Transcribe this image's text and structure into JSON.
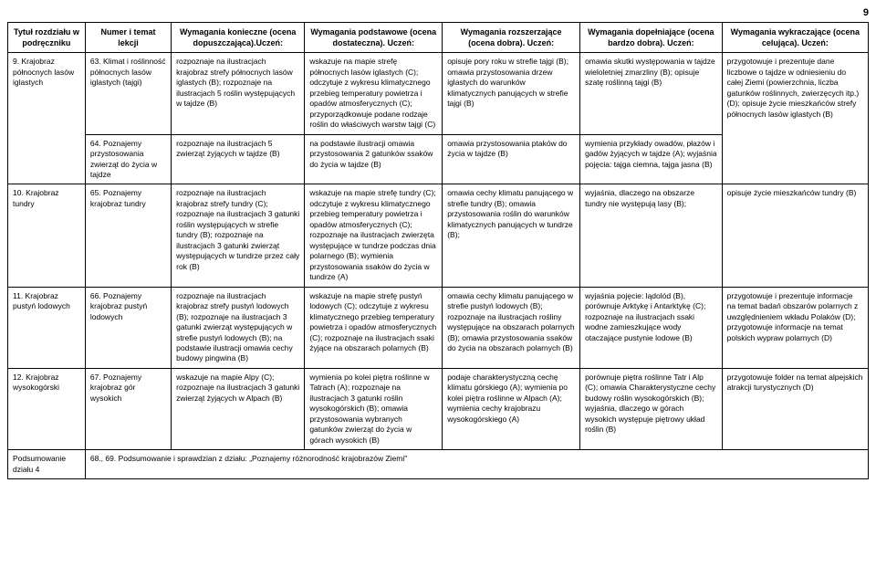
{
  "pageNumber": "9",
  "headers": [
    "Tytuł rozdziału w podręczniku",
    "Numer i temat lekcji",
    "Wymagania konieczne (ocena dopuszczająca).Uczeń:",
    "Wymagania podstawowe (ocena dostateczna). Uczeń:",
    "Wymagania rozszerzające (ocena dobra). Uczeń:",
    "Wymagania dopełniające (ocena bardzo dobra). Uczeń:",
    "Wymagania wykraczające (ocena celująca). Uczeń:"
  ],
  "rows": [
    {
      "c1": "9. Krajobraz północnych lasów iglastych",
      "c2": "63. Klimat i roślinność północnych lasów iglastych (tajgi)",
      "c3": "rozpoznaje na ilustracjach krajobraz strefy północnych lasów iglastych (B); rozpoznaje na ilustracjach 5 roślin występujących w tajdze (B)",
      "c4": "wskazuje na mapie strefę północnych lasów iglastych (C); odczytuje z wykresu klimatycznego przebieg temperatury powietrza i opadów atmosferycznych (C); przyporządkowuje podane rodzaje roślin do właściwych warstw tajgi (C)",
      "c5": "opisuje pory roku w strefie tajgi (B); omawia przystosowania drzew iglastych do warunków klimatycznych panujących w strefie tajgi (B)",
      "c6": "omawia skutki występowania w tajdze wieloletniej zmarzliny (B); opisuje szatę roślinną tajgi (B)",
      "c7": "przygotowuje i prezentuje dane liczbowe o tajdze w odniesieniu do całej Ziemi (powierzchnia, liczba gatunków roślinnych, zwierzęcych itp.) (D); opisuje życie mieszkańców strefy północnych lasów iglastych (B)"
    },
    {
      "c1": "",
      "c2": "64. Poznajemy przystosowania zwierząt do życia w tajdze",
      "c3": "rozpoznaje na ilustracjach 5 zwierząt żyjących w tajdze (B)",
      "c4": "na podstawie ilustracji omawia przystosowania 2 gatunków ssaków do życia w tajdze (B)",
      "c5": "omawia przystosowania ptaków do życia w tajdze (B)",
      "c6": "wymienia przykłady owadów, płazów i gadów żyjących w tajdze (A); wyjaśnia pojęcia: tajga ciemna, tajga jasna (B)",
      "c7": ""
    },
    {
      "c1": "10. Krajobraz tundry",
      "c2": "65. Poznajemy krajobraz tundry",
      "c3": "rozpoznaje na ilustracjach krajobraz strefy tundry (C); rozpoznaje na ilustracjach 3 gatunki roślin występujących w strefie tundry (B); rozpoznaje na ilustracjach 3 gatunki zwierząt występujących w tundrze przez cały rok (B)",
      "c4": "wskazuje na mapie strefę tundry (C); odczytuje z wykresu klimatycznego przebieg temperatury powietrza i opadów atmosferycznych (C); rozpoznaje na ilustracjach zwierzęta występujące w tundrze podczas dnia polarnego (B); wymienia przystosowania ssaków do życia w tundrze (A)",
      "c5": "omawia cechy klimatu panującego w strefie tundry (B); omawia przystosowania roślin do warunków klimatycznych panujących w tundrze (B);",
      "c6": "wyjaśnia, dlaczego na obszarze tundry nie występują lasy (B);",
      "c7": "opisuje życie mieszkańców tundry (B)"
    },
    {
      "c1": "11. Krajobraz pustyń lodowych",
      "c2": "66. Poznajemy krajobraz pustyń lodowych",
      "c3": "rozpoznaje na ilustracjach krajobraz strefy pustyń lodowych (B); rozpoznaje na ilustracjach 3 gatunki zwierząt występujących w strefie pustyń lodowych (B); na podstawie ilustracji omawia cechy budowy pingwina (B)",
      "c4": "wskazuje na mapie strefę pustyń lodowych (C); odczytuje z wykresu klimatycznego przebieg temperatury powietrza i opadów atmosferycznych (C); rozpoznaje na ilustracjach ssaki żyjące na obszarach polarnych (B)",
      "c5": "omawia cechy klimatu panującego w strefie pustyń lodowych (B); rozpoznaje na ilustracjach rośliny występujące na obszarach polarnych (B); omawia przystosowania ssaków do życia na obszarach polarnych (B)",
      "c6": "wyjaśnia pojęcie: lądolód (B), porównuje Arktykę i Antarktykę (C); rozpoznaje na ilustracjach ssaki wodne zamieszkujące wody otaczające pustynie lodowe (B)",
      "c7": "przygotowuje i prezentuje informacje na temat badań obszarów polarnych z uwzględnieniem wkładu Polaków (D); przygotowuje informacje na temat polskich wypraw polarnych (D)"
    },
    {
      "c1": "12. Krajobraz wysokogórski",
      "c2": "67. Poznajemy krajobraz gór wysokich",
      "c3": "wskazuje na mapie Alpy (C); rozpoznaje na ilustracjach 3 gatunki zwierząt żyjących w Alpach (B)",
      "c4": "wymienia po kolei piętra roślinne w Tatrach (A); rozpoznaje na ilustracjach 3 gatunki roślin wysokogórskich (B); omawia przystosowania wybranych gatunków zwierząt do życia w górach wysokich (B)",
      "c5": "podaje charakterystyczną cechę klimatu górskiego (A); wymienia po kolei piętra roślinne w Alpach (A); wymienia cechy krajobrazu wysokogórskiego (A)",
      "c6": "porównuje piętra roślinne Tatr i Alp (C); omawia Charakterystyczne cechy budowy roślin wysokogórskich (B); wyjaśnia, dlaczego w górach wysokich występuje piętrowy układ roślin (B)",
      "c7": "przygotowuje folder na temat alpejskich atrakcji turystycznych (D)"
    }
  ],
  "summaryLabel": "Podsumowanie działu 4",
  "summaryText": "68., 69. Podsumowanie i sprawdzian z działu: „Poznajemy różnorodność krajobrazów Ziemi\""
}
